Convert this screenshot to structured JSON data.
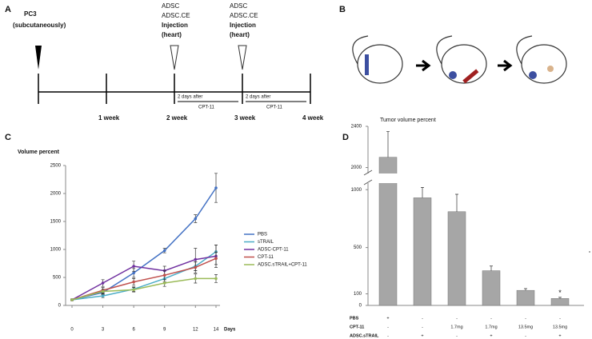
{
  "panels": {
    "a": "A",
    "b": "B",
    "c": "C",
    "d": "D"
  },
  "timeline": {
    "start": {
      "cell_line": "PC3",
      "route": "(subcutaneously)"
    },
    "injections": [
      {
        "lines": [
          "ADSC",
          "ADSC.CE",
          "Injection",
          "(heart)"
        ],
        "note": "2 days after",
        "drug": "CPT-11"
      },
      {
        "lines": [
          "ADSC",
          "ADSC.CE",
          "Injection",
          "(heart)"
        ],
        "note": "2 days after",
        "drug": "CPT-11"
      }
    ],
    "weeks": [
      "1 week",
      "2 week",
      "3 week",
      "4 week"
    ]
  },
  "chart_data": [
    {
      "type": "line",
      "title": "Volume percent",
      "x_label": "Days",
      "x": [
        0,
        3,
        6,
        9,
        12,
        14
      ],
      "xlim": [
        0,
        14
      ],
      "xticks": [
        0,
        3,
        6,
        9,
        12,
        14
      ],
      "ylim": [
        0,
        2500
      ],
      "yticks": [
        0,
        500,
        1000,
        1500,
        2000,
        2500
      ],
      "series": [
        {
          "name": "PBS",
          "color": "#4472c4",
          "values": [
            100,
            230,
            580,
            980,
            1550,
            2100
          ],
          "errors": [
            15,
            40,
            80,
            40,
            70,
            260
          ]
        },
        {
          "name": "sTRAIL",
          "color": "#4bacc6",
          "values": [
            100,
            170,
            290,
            480,
            700,
            960
          ],
          "errors": [
            15,
            30,
            40,
            60,
            80,
            120
          ]
        },
        {
          "name": "ADSC-CPT-11",
          "color": "#7030a0",
          "values": [
            100,
            400,
            700,
            620,
            820,
            880
          ],
          "errors": [
            15,
            60,
            90,
            80,
            200,
            200
          ]
        },
        {
          "name": "CPT-11",
          "color": "#c0504d",
          "values": [
            100,
            270,
            420,
            540,
            680,
            840
          ],
          "errors": [
            15,
            50,
            60,
            80,
            100,
            110
          ]
        },
        {
          "name": "ADSC.sTRAIL+CPT-11",
          "color": "#9bbb59",
          "values": [
            100,
            250,
            280,
            400,
            480,
            480
          ],
          "errors": [
            15,
            40,
            40,
            60,
            80,
            70
          ]
        }
      ]
    },
    {
      "type": "bar",
      "y_label": "Tumor volume percent",
      "color": "#a6a6a6",
      "values": [
        2100,
        930,
        810,
        300,
        130,
        60
      ],
      "errors": [
        250,
        90,
        150,
        40,
        15,
        10
      ],
      "ylim": [
        0,
        2400
      ],
      "yticks": [
        0,
        100,
        500,
        1000,
        2000,
        2400
      ],
      "axis_break": [
        1050,
        1950
      ],
      "significance": "*",
      "table": [
        {
          "label": "PBS",
          "cells": [
            "+",
            "-",
            "-",
            "-",
            "-",
            "-"
          ]
        },
        {
          "label": "CPT-11",
          "cells": [
            "-",
            "-",
            "1.7mg",
            "1.7mg",
            "13.5mg",
            "13.5mg"
          ]
        },
        {
          "label": "ADSC.sTRAIL",
          "cells": [
            "-",
            "+",
            "-",
            "+",
            "-",
            "+"
          ]
        }
      ]
    }
  ]
}
